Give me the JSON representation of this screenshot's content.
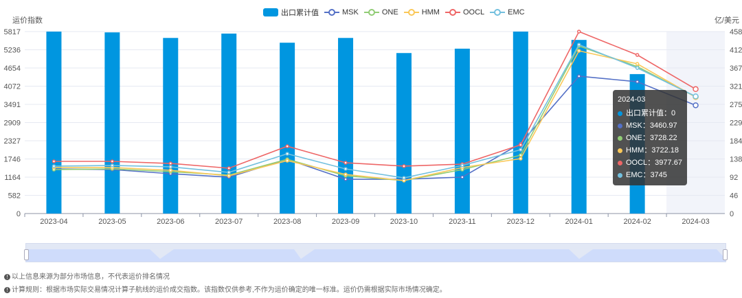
{
  "chart_data": {
    "type": "bar+line",
    "categories": [
      "2023-04",
      "2023-05",
      "2023-06",
      "2023-07",
      "2023-08",
      "2023-09",
      "2023-10",
      "2023-11",
      "2023-12",
      "2024-01",
      "2024-02",
      "2024-03"
    ],
    "ylabel_left": "运价指数",
    "ylabel_right": "亿/美元",
    "yticks_left": [
      "0",
      "582",
      "1164",
      "1746",
      "2327",
      "2909",
      "3491",
      "4072",
      "4654",
      "5236",
      "5817"
    ],
    "yticks_right": [
      "0",
      "46",
      "92",
      "138",
      "184",
      "229",
      "275",
      "321",
      "367",
      "412",
      "458"
    ],
    "ylim_left": [
      0,
      5817
    ],
    "ylim_right": [
      0,
      458
    ],
    "grid": true,
    "legend_position": "top-center",
    "bar_series": {
      "name": "出口累计值",
      "axis": "right",
      "color": "#0096e0",
      "values": [
        458,
        456,
        442,
        453,
        430,
        442,
        404,
        415,
        458,
        437,
        351,
        0
      ]
    },
    "series": [
      {
        "name": "MSK",
        "color": "#5470c6",
        "values": [
          1427,
          1405,
          1273,
          1163,
          1734,
          1097,
          1097,
          1163,
          2239,
          4390,
          4214,
          3460.97
        ]
      },
      {
        "name": "ONE",
        "color": "#91cc75",
        "values": [
          1405,
          1427,
          1339,
          1229,
          1734,
          1207,
          1054,
          1405,
          1866,
          5356,
          4697,
          3728.22
        ]
      },
      {
        "name": "HMM",
        "color": "#fac858",
        "values": [
          1471,
          1471,
          1383,
          1207,
          1690,
          1251,
          1054,
          1471,
          1756,
          5202,
          4785,
          3722.18
        ]
      },
      {
        "name": "OOCL",
        "color": "#ee6666",
        "values": [
          1668,
          1668,
          1602,
          1449,
          2151,
          1624,
          1515,
          1580,
          2195,
          5817,
          5070,
          3977.67
        ]
      },
      {
        "name": "EMC",
        "color": "#73c0de",
        "values": [
          1515,
          1537,
          1493,
          1317,
          1910,
          1427,
          1141,
          1537,
          2041,
          5400,
          4653,
          3745
        ]
      }
    ],
    "highlighted_category": "2024-03"
  },
  "tooltip": {
    "title": "2024-03",
    "rows": [
      {
        "label": "出口累计值：0",
        "color": "#0096e0"
      },
      {
        "label": "MSK：3460.97",
        "color": "#5470c6"
      },
      {
        "label": "ONE：3728.22",
        "color": "#91cc75"
      },
      {
        "label": "HMM：3722.18",
        "color": "#fac858"
      },
      {
        "label": "OOCL：3977.67",
        "color": "#ee6666"
      },
      {
        "label": "EMC：3745",
        "color": "#73c0de"
      }
    ]
  },
  "notes": [
    "以上信息来源为部分市场信息，不代表运价排名情况",
    "计算规则：根据市场实际交易情况计算子航线的运价成交指数。该指数仅供参考,不作为运价确定的唯一标准。运价仍需根据实际市场情况确定。"
  ]
}
